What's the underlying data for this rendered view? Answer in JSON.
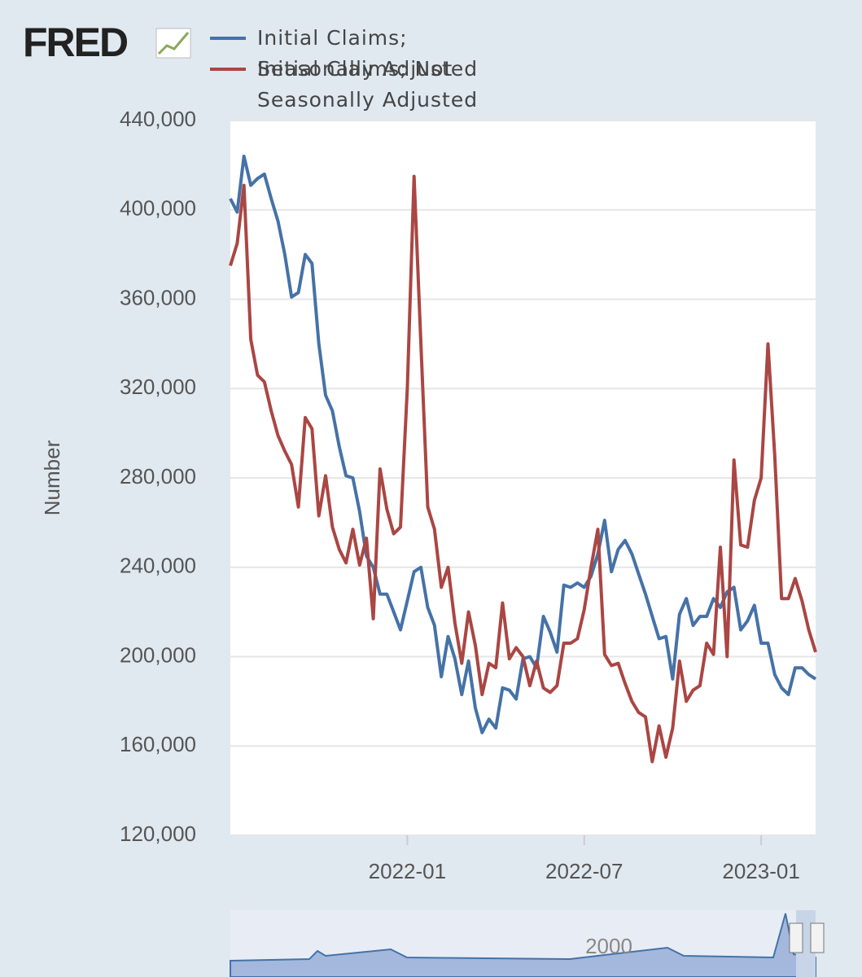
{
  "logo": "FRED",
  "chart_data": {
    "type": "line",
    "ylabel": "Number",
    "categories": [
      null,
      null,
      null,
      null,
      null,
      null,
      null,
      null,
      null,
      null,
      null,
      null,
      null,
      null,
      null,
      null,
      null,
      null,
      null,
      null,
      null,
      null,
      null,
      null,
      null,
      null,
      "2022-01",
      null,
      null,
      null,
      null,
      null,
      null,
      null,
      null,
      null,
      null,
      null,
      null,
      null,
      null,
      null,
      null,
      null,
      null,
      null,
      null,
      null,
      null,
      null,
      null,
      null,
      "2022-07",
      null,
      null,
      null,
      null,
      null,
      null,
      null,
      null,
      null,
      null,
      null,
      null,
      null,
      null,
      null,
      null,
      null,
      null,
      null,
      null,
      null,
      null,
      null,
      null,
      null,
      "2023-01",
      null,
      null,
      null,
      null,
      null,
      null,
      null,
      null
    ],
    "series": [
      {
        "name": "Initial Claims; Seasonally Adjusted",
        "color": "#4572a7",
        "values": [
          405000,
          399000,
          424000,
          411000,
          414000,
          416000,
          405000,
          395000,
          380000,
          361000,
          363000,
          380000,
          376000,
          340000,
          317000,
          310000,
          294000,
          281000,
          280000,
          265000,
          245000,
          240000,
          228000,
          228000,
          220000,
          212000,
          225000,
          238000,
          240000,
          222000,
          214000,
          191000,
          209000,
          199000,
          183000,
          198000,
          177000,
          166000,
          172000,
          168000,
          186000,
          185000,
          181000,
          199000,
          200000,
          195000,
          218000,
          211000,
          202000,
          232000,
          231000,
          233000,
          231000,
          236000,
          246000,
          261000,
          238000,
          248000,
          252000,
          246000,
          237000,
          228000,
          218000,
          208000,
          209000,
          190000,
          219000,
          226000,
          214000,
          218000,
          218000,
          226000,
          222000,
          229000,
          231000,
          212000,
          216000,
          223000,
          206000,
          206000,
          192000,
          186000,
          183000,
          195000,
          195000,
          192000,
          190000
        ]
      },
      {
        "name": "Initial Claims; Not Seasonally Adjusted",
        "color": "#aa4643",
        "values": [
          375000,
          385000,
          411000,
          342000,
          326000,
          323000,
          310000,
          299000,
          292000,
          286000,
          267000,
          307000,
          302000,
          263000,
          281000,
          258000,
          248000,
          242000,
          257000,
          241000,
          253000,
          217000,
          284000,
          266000,
          255000,
          258000,
          320000,
          415000,
          340000,
          267000,
          257000,
          231000,
          240000,
          215000,
          197000,
          220000,
          205000,
          183000,
          197000,
          195000,
          224000,
          199000,
          204000,
          200000,
          187000,
          198000,
          186000,
          184000,
          187000,
          206000,
          206000,
          208000,
          221000,
          240000,
          257000,
          201000,
          196000,
          197000,
          188000,
          180000,
          175000,
          173000,
          153000,
          169000,
          155000,
          168000,
          198000,
          180000,
          185000,
          187000,
          206000,
          201000,
          249000,
          200000,
          288000,
          250000,
          249000,
          270000,
          280000,
          340000,
          290000,
          226000,
          226000,
          235000,
          225000,
          212000,
          202000
        ]
      }
    ],
    "ylim": [
      120000,
      440000
    ],
    "yticks": [
      {
        "value": 120000,
        "label": "120,000"
      },
      {
        "value": 160000,
        "label": "160,000"
      },
      {
        "value": 200000,
        "label": "200,000"
      },
      {
        "value": 240000,
        "label": "240,000"
      },
      {
        "value": 280000,
        "label": "280,000"
      },
      {
        "value": 320000,
        "label": "320,000"
      },
      {
        "value": 360000,
        "label": "360,000"
      },
      {
        "value": 400000,
        "label": "400,000"
      },
      {
        "value": 440000,
        "label": "440,000"
      }
    ],
    "grid": true,
    "navigator_label": "2000"
  }
}
